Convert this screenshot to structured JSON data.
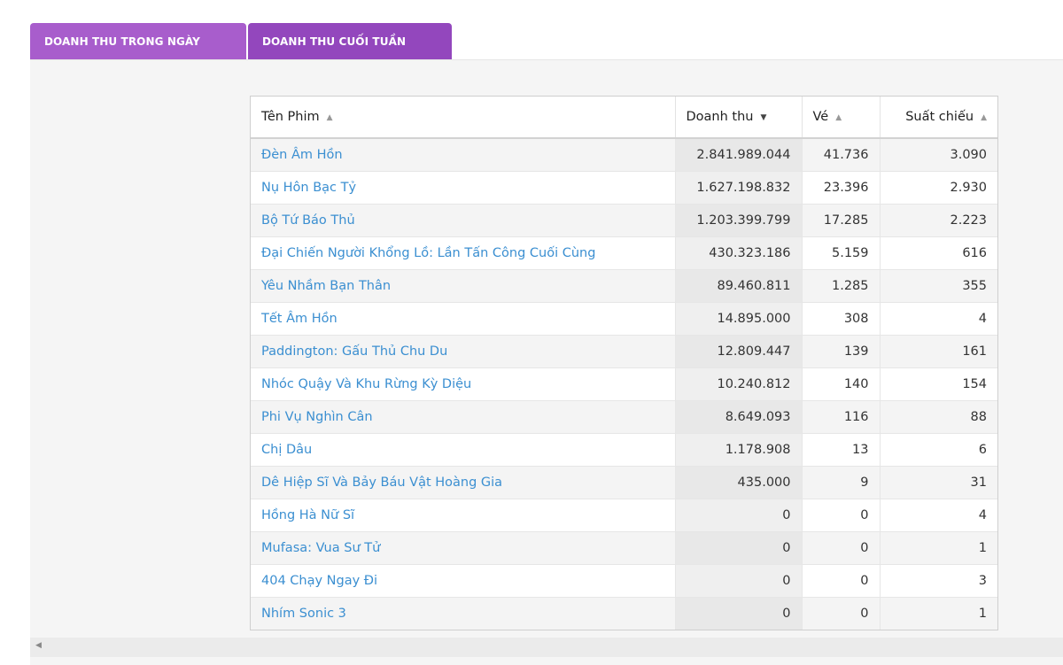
{
  "tabs": [
    {
      "label": "DOANH THU TRONG NGÀY"
    },
    {
      "label": "DOANH THU CUỐI TUẦN"
    }
  ],
  "table": {
    "headers": [
      "Tên Phim",
      "Doanh thu",
      "Vé",
      "Suất chiếu"
    ],
    "sort_icons": {
      "asc": "▲",
      "desc": "▼"
    },
    "rows": [
      [
        "Đèn Âm Hồn",
        "2.841.989.044",
        "41.736",
        "3.090"
      ],
      [
        "Nụ Hôn Bạc Tỷ",
        "1.627.198.832",
        "23.396",
        "2.930"
      ],
      [
        "Bộ Tứ Báo Thủ",
        "1.203.399.799",
        "17.285",
        "2.223"
      ],
      [
        "Đại Chiến Người Khổng Lồ: Lần Tấn Công Cuối Cùng",
        "430.323.186",
        "5.159",
        "616"
      ],
      [
        "Yêu Nhầm Bạn Thân",
        "89.460.811",
        "1.285",
        "355"
      ],
      [
        "Tết Âm Hồn",
        "14.895.000",
        "308",
        "4"
      ],
      [
        "Paddington: Gấu Thủ Chu Du",
        "12.809.447",
        "139",
        "161"
      ],
      [
        "Nhóc Quậy Và Khu Rừng Kỳ Diệu",
        "10.240.812",
        "140",
        "154"
      ],
      [
        "Phi Vụ Nghìn Cân",
        "8.649.093",
        "116",
        "88"
      ],
      [
        "Chị Dâu",
        "1.178.908",
        "13",
        "6"
      ],
      [
        "Dê Hiệp Sĩ Và Bảy Báu Vật Hoàng Gia",
        "435.000",
        "9",
        "31"
      ],
      [
        "Hồng Hà Nữ Sĩ",
        "0",
        "0",
        "4"
      ],
      [
        "Mufasa: Vua Sư Tử",
        "0",
        "0",
        "1"
      ],
      [
        "404 Chạy Ngay Đi",
        "0",
        "0",
        "3"
      ],
      [
        "Nhím Sonic 3",
        "0",
        "0",
        "1"
      ]
    ]
  },
  "scrollbar": {
    "left_arrow": "◀"
  },
  "colors": {
    "tab_inactive": "#a85dcc",
    "tab_active": "#9347bd",
    "link": "#3b8fd1"
  }
}
